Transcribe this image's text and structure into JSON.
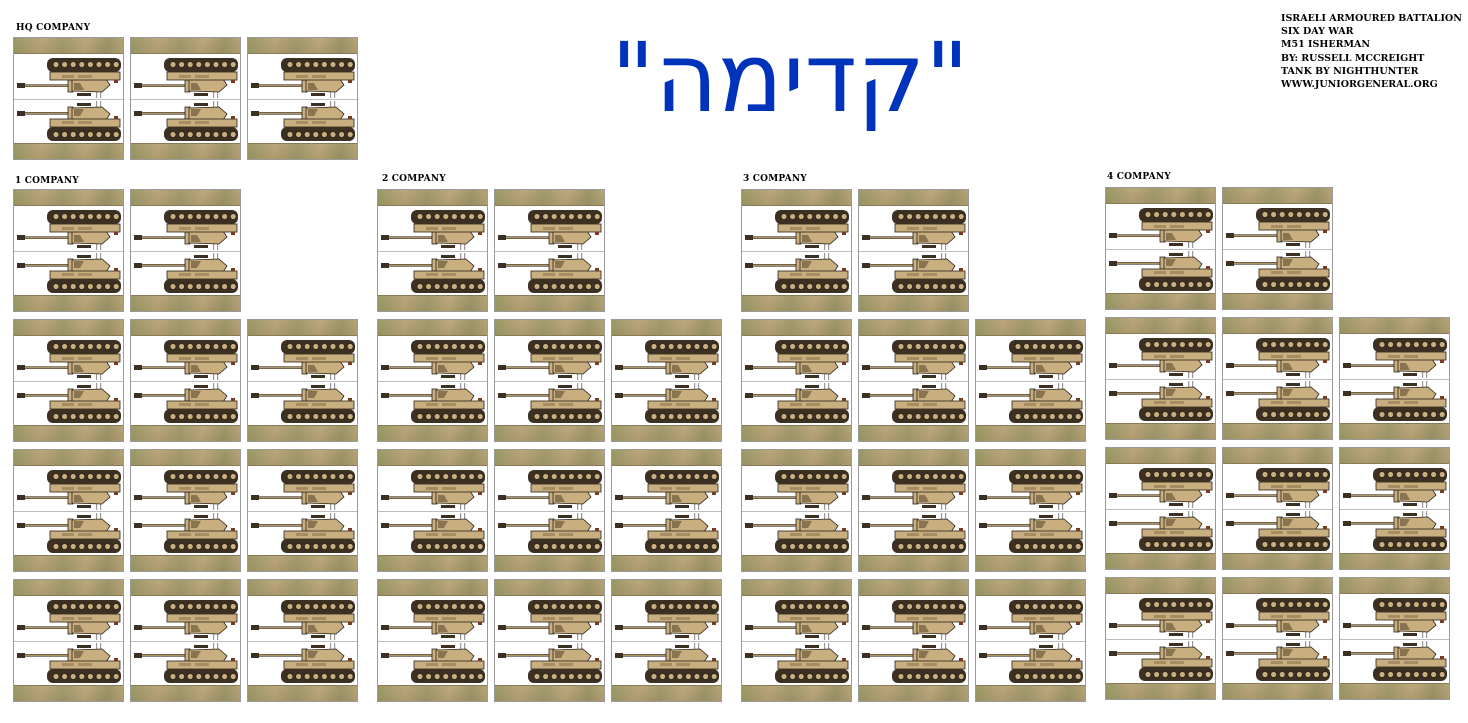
{
  "title": "\"קדימה\"",
  "credits": [
    "ISRAELI ARMOURED BATTALION",
    "SIX DAY WAR",
    "M51 ISHERMAN",
    "BY: RUSSELL MCCREIGHT",
    "TANK BY NIGHTHUNTER",
    "WWW.JUNIORGENERAL.ORG"
  ],
  "units": [
    {
      "label": "HQ COMPANY",
      "rows": [
        3
      ]
    },
    {
      "label": "1 COMPANY",
      "rows": [
        2,
        3,
        3,
        3
      ]
    },
    {
      "label": "2 COMPANY",
      "rows": [
        2,
        3,
        3,
        3
      ]
    },
    {
      "label": "3 COMPANY",
      "rows": [
        2,
        3,
        3,
        3
      ]
    },
    {
      "label": "4 COMPANY",
      "rows": [
        2,
        3,
        3,
        3
      ]
    }
  ],
  "tank": {
    "name": "M51 Isherman",
    "icon": "tank-icon"
  },
  "colors": {
    "title": "#0033bb",
    "tank_tan": "#c9ae7f",
    "track": "#3b3022",
    "ground": "#ad9a70"
  }
}
